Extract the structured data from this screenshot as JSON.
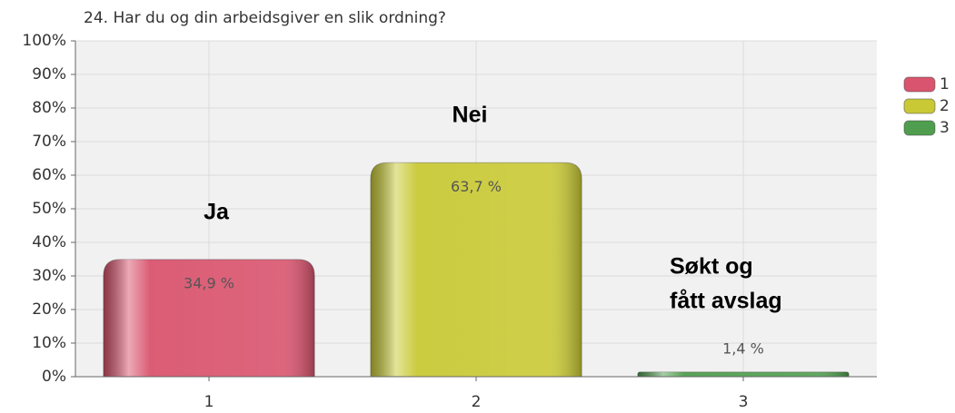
{
  "chart_data": {
    "type": "bar",
    "title": "24. Har du og din arbeidsgiver en slik ordning?",
    "categories": [
      "1",
      "2",
      "3"
    ],
    "values": [
      34.9,
      63.7,
      1.4
    ],
    "value_labels": [
      "34,9 %",
      "63,7 %",
      "1,4 %"
    ],
    "colors": [
      "#d9546e",
      "#c9c936",
      "#4f9e4f"
    ],
    "legend": [
      "1",
      "2",
      "3"
    ],
    "annotations": [
      [
        "Ja"
      ],
      [
        "Nei"
      ],
      [
        "Søkt og",
        "fått avslag"
      ]
    ],
    "ylim": [
      0,
      100
    ],
    "yticks": [
      {
        "value": 0,
        "label": "0%"
      },
      {
        "value": 10,
        "label": "10%"
      },
      {
        "value": 20,
        "label": "20%"
      },
      {
        "value": 30,
        "label": "30%"
      },
      {
        "value": 40,
        "label": "40%"
      },
      {
        "value": 50,
        "label": "50%"
      },
      {
        "value": 60,
        "label": "60%"
      },
      {
        "value": 70,
        "label": "70%"
      },
      {
        "value": 80,
        "label": "80%"
      },
      {
        "value": 90,
        "label": "90%"
      },
      {
        "value": 100,
        "label": "100%"
      }
    ],
    "grid": true
  }
}
